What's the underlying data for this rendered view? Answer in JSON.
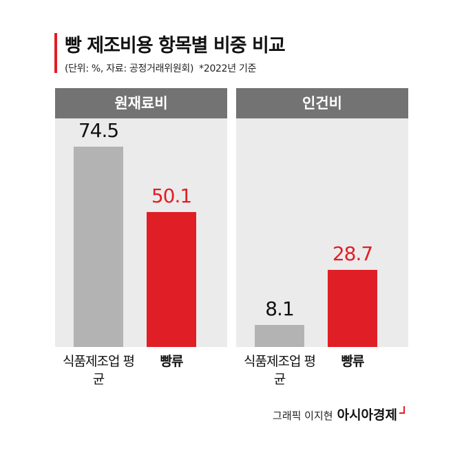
{
  "header": {
    "title": "빵 제조비용 항목별 비중 비교",
    "subtitle": "(단위: %, 자료: 공정거래위원회)",
    "note": "*2022년 기준"
  },
  "colors": {
    "accent": "#e01e25",
    "gray_bar": "#b3b3b3",
    "panel_bg": "#ebebeb",
    "panel_head": "#737373"
  },
  "chart_data": [
    {
      "type": "bar",
      "title": "원재료비",
      "categories": [
        "식품제조업 평균",
        "빵류"
      ],
      "values": [
        74.5,
        50.1
      ],
      "value_labels": [
        "74.5",
        "50.1"
      ],
      "ylim": [
        0,
        85
      ]
    },
    {
      "type": "bar",
      "title": "인건비",
      "categories": [
        "식품제조업 평균",
        "빵류"
      ],
      "values": [
        8.1,
        28.7
      ],
      "value_labels": [
        "8.1",
        "28.7"
      ],
      "ylim": [
        0,
        85
      ]
    }
  ],
  "footer": {
    "credit": "그래픽 이지현",
    "brand": "아시아경제"
  }
}
